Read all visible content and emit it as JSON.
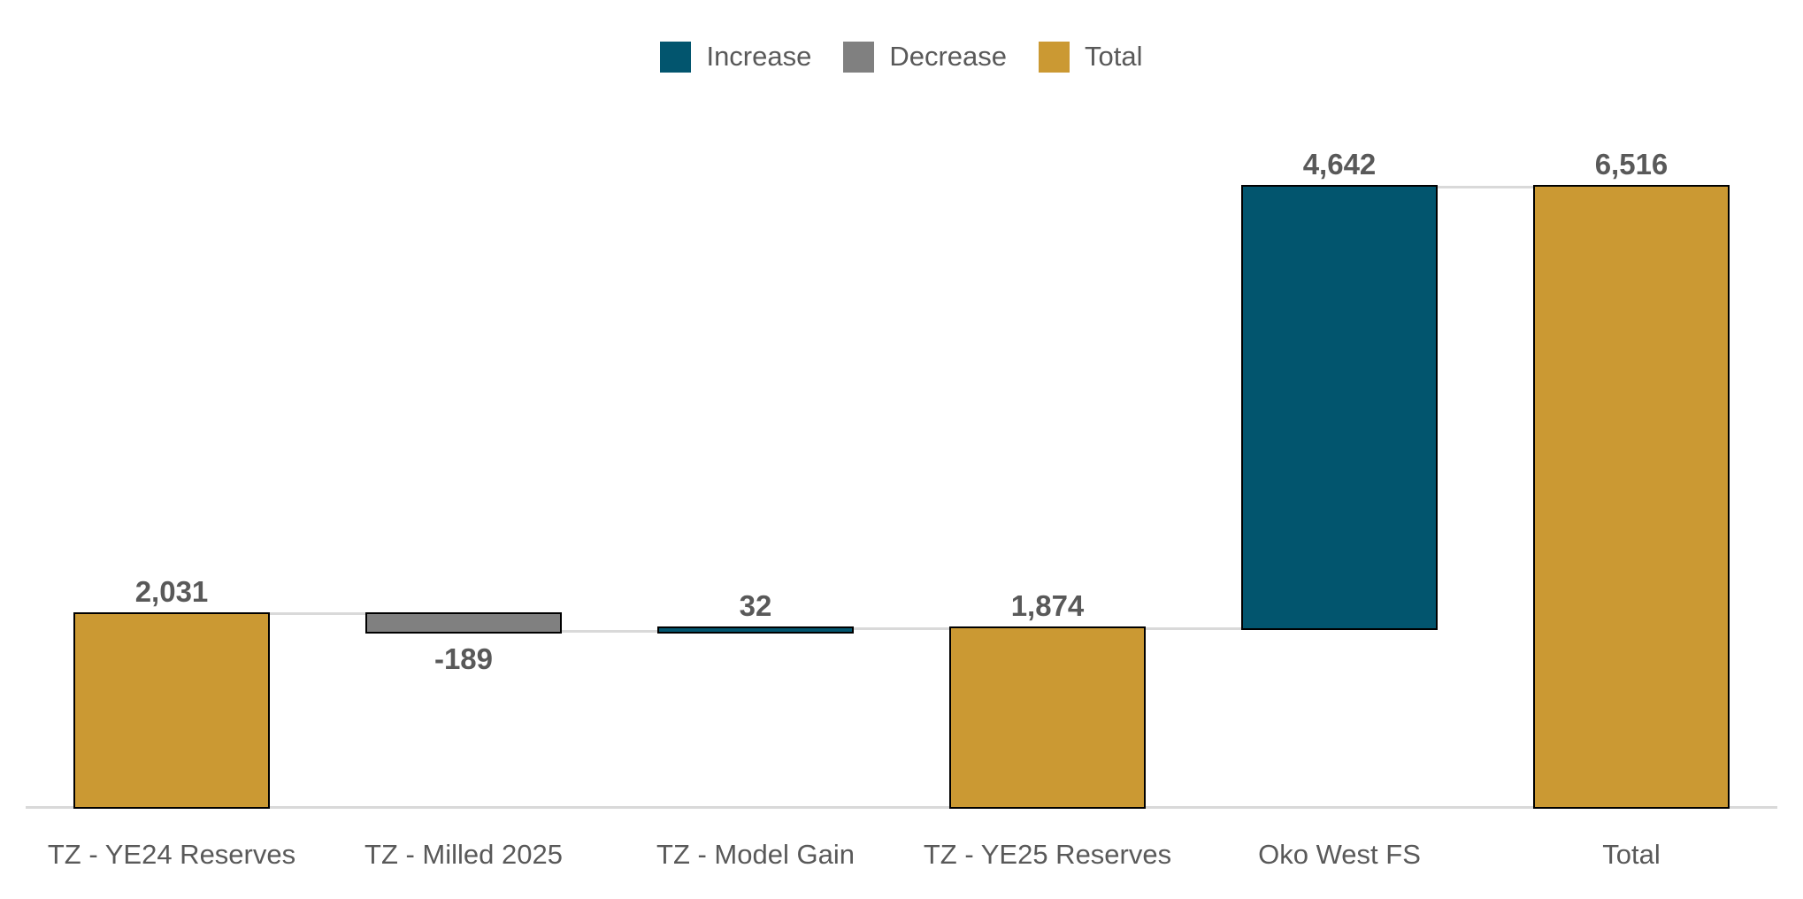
{
  "chart_data": {
    "type": "bar",
    "subtype": "waterfall",
    "title": "",
    "legend": [
      {
        "label": "Increase",
        "kind": "increase",
        "color": "#02556E"
      },
      {
        "label": "Decrease",
        "kind": "decrease",
        "color": "#808080"
      },
      {
        "label": "Total",
        "kind": "total",
        "color": "#CB9933"
      }
    ],
    "categories": [
      "TZ - YE24 Reserves",
      "TZ - Milled 2025",
      "TZ - Model Gain",
      "TZ - YE25 Reserves",
      "Oko West FS",
      "Total"
    ],
    "steps": [
      {
        "value": 2031,
        "display": "2,031",
        "kind": "total"
      },
      {
        "value": -189,
        "display": "-189",
        "kind": "decrease"
      },
      {
        "value": 32,
        "display": "32",
        "kind": "increase"
      },
      {
        "value": 1874,
        "display": "1,874",
        "kind": "total"
      },
      {
        "value": 4642,
        "display": "4,642",
        "kind": "increase"
      },
      {
        "value": 6516,
        "display": "6,516",
        "kind": "total"
      }
    ],
    "axis": {
      "y_min": 0,
      "y_max": 6516,
      "gridlines": false,
      "baseline_shown": true,
      "legend_position": "top-center"
    },
    "colors": {
      "increase": "#02556E",
      "decrease": "#808080",
      "total": "#CB9933",
      "bar_border": "#000000",
      "connector": "#D9D9D9",
      "baseline": "#D9D9D9",
      "label_text": "#595959"
    }
  }
}
